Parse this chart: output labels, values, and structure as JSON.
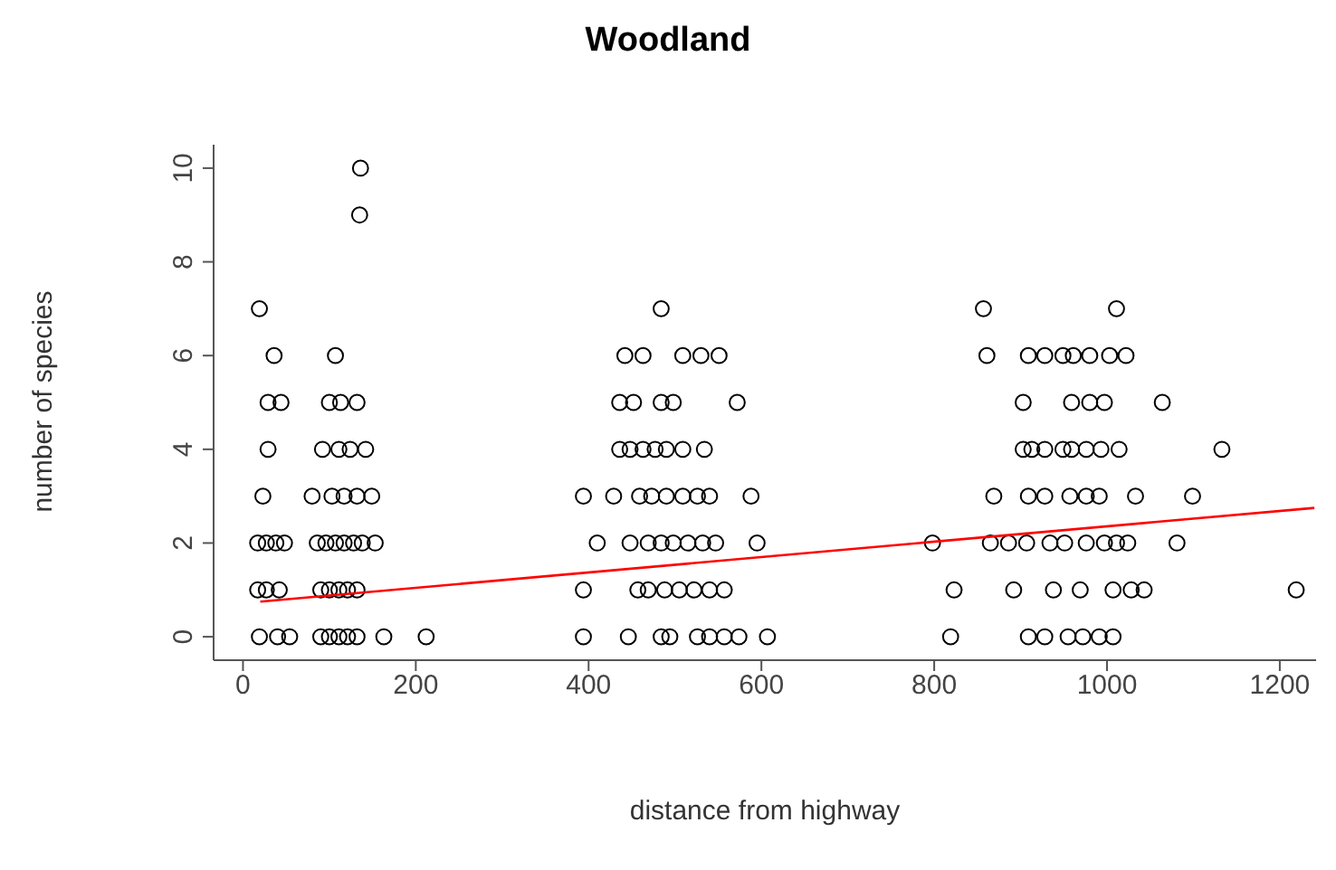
{
  "chart_data": {
    "type": "scatter",
    "title": "Woodland",
    "xlabel": "distance from highway",
    "ylabel": "number of species",
    "xlim": [
      -34,
      1242
    ],
    "ylim": [
      -0.5,
      10.5
    ],
    "xticks": [
      0,
      200,
      400,
      600,
      800,
      1000,
      1200
    ],
    "yticks": [
      0,
      2,
      4,
      6,
      8,
      10
    ],
    "marker": "circle",
    "series": [
      {
        "color": "#000000",
        "x": [
          136,
          135,
          19,
          36,
          107,
          29,
          44,
          100,
          113,
          132,
          29,
          92,
          111,
          124,
          142,
          23,
          80,
          103,
          117,
          132,
          149,
          17,
          27,
          38,
          48,
          86,
          96,
          107,
          117,
          128,
          138,
          153,
          17,
          27,
          42,
          90,
          100,
          111,
          121,
          132,
          19,
          40,
          54,
          90,
          100,
          111,
          121,
          132,
          163,
          212,
          484,
          442,
          463,
          509,
          530,
          551,
          436,
          452,
          484,
          498,
          572,
          436,
          448,
          463,
          477,
          490,
          509,
          534,
          394,
          429,
          459,
          473,
          490,
          509,
          526,
          540,
          588,
          410,
          448,
          469,
          484,
          498,
          515,
          532,
          547,
          595,
          394,
          457,
          469,
          488,
          505,
          522,
          540,
          557,
          394,
          446,
          484,
          494,
          526,
          540,
          557,
          574,
          607,
          857,
          1011,
          861,
          909,
          928,
          949,
          961,
          980,
          1003,
          1022,
          903,
          959,
          980,
          997,
          1064,
          903,
          913,
          928,
          949,
          959,
          976,
          993,
          1014,
          1133,
          869,
          909,
          928,
          957,
          976,
          991,
          1033,
          1099,
          798,
          865,
          886,
          907,
          934,
          951,
          976,
          997,
          1011,
          1024,
          1081,
          823,
          892,
          938,
          969,
          1007,
          1028,
          1043,
          1219,
          819,
          909,
          928,
          955,
          972,
          991,
          1007
        ],
        "values": [
          10,
          9,
          7,
          6,
          6,
          5,
          5,
          5,
          5,
          5,
          4,
          4,
          4,
          4,
          4,
          3,
          3,
          3,
          3,
          3,
          3,
          2,
          2,
          2,
          2,
          2,
          2,
          2,
          2,
          2,
          2,
          2,
          1,
          1,
          1,
          1,
          1,
          1,
          1,
          1,
          0,
          0,
          0,
          0,
          0,
          0,
          0,
          0,
          0,
          0,
          7,
          6,
          6,
          6,
          6,
          6,
          5,
          5,
          5,
          5,
          5,
          4,
          4,
          4,
          4,
          4,
          4,
          4,
          3,
          3,
          3,
          3,
          3,
          3,
          3,
          3,
          3,
          2,
          2,
          2,
          2,
          2,
          2,
          2,
          2,
          2,
          1,
          1,
          1,
          1,
          1,
          1,
          1,
          1,
          0,
          0,
          0,
          0,
          0,
          0,
          0,
          0,
          0,
          7,
          7,
          6,
          6,
          6,
          6,
          6,
          6,
          6,
          6,
          5,
          5,
          5,
          5,
          5,
          4,
          4,
          4,
          4,
          4,
          4,
          4,
          4,
          4,
          3,
          3,
          3,
          3,
          3,
          3,
          3,
          3,
          2,
          2,
          2,
          2,
          2,
          2,
          2,
          2,
          2,
          2,
          2,
          1,
          1,
          1,
          1,
          1,
          1,
          1,
          1,
          0,
          0,
          0,
          0,
          0,
          0,
          0
        ]
      },
      {
        "type": "line",
        "marker": "none",
        "color": "#ff0000",
        "x": [
          20,
          1240
        ],
        "values": [
          0.75,
          2.75
        ]
      }
    ]
  }
}
